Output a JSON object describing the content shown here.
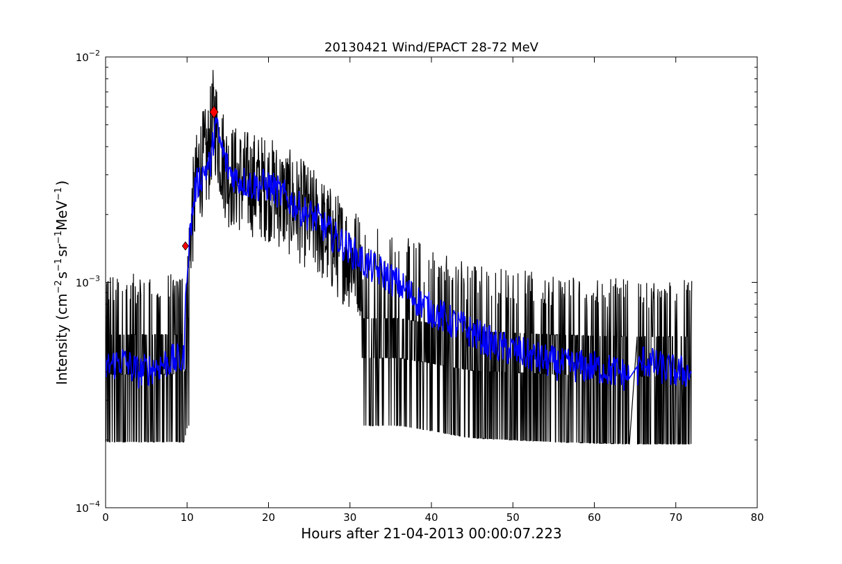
{
  "chart_data": {
    "type": "line",
    "title": "20130421 Wind/EPACT 28-72 MeV",
    "xlabel": "Hours after 21-04-2013 00:00:07.223",
    "ylabel": {
      "prefix": "Intensity (cm",
      "exp1": "−2",
      "mid1": "s",
      "exp2": "−1",
      "mid2": "sr",
      "exp3": "−1",
      "mid3": "MeV",
      "exp4": "−1",
      "suffix": ")"
    },
    "xlim": [
      0,
      80
    ],
    "ylim": [
      0.0001,
      0.01
    ],
    "yscale": "log",
    "x_ticks": [
      0,
      10,
      20,
      30,
      40,
      50,
      60,
      70,
      80
    ],
    "x_tick_labels": [
      "0",
      "10",
      "20",
      "30",
      "40",
      "50",
      "60",
      "70",
      "80"
    ],
    "y_ticks": [
      {
        "value": 0.0001,
        "base": "10",
        "exp": "−4"
      },
      {
        "value": 0.001,
        "base": "10",
        "exp": "−3"
      },
      {
        "value": 0.01,
        "base": "10",
        "exp": "−2"
      }
    ],
    "series": [
      {
        "color": "#000000",
        "style": "raw intensity (noisy)",
        "x": [
          0,
          5,
          9.6,
          10.5,
          11.5,
          12.5,
          13.3,
          14,
          15,
          17,
          20,
          23,
          26,
          28,
          30,
          33,
          36,
          40,
          45,
          50,
          55,
          60,
          64.3,
          65.3,
          68,
          72
        ],
        "y": [
          0.00045,
          0.00045,
          0.00045,
          0.0018,
          0.0033,
          0.0035,
          0.0055,
          0.004,
          0.003,
          0.0028,
          0.0026,
          0.0022,
          0.0018,
          0.0015,
          0.0013,
          0.0011,
          0.0009,
          0.00075,
          0.00055,
          0.0005,
          0.00045,
          0.00042,
          0.0004,
          0.0004,
          0.0004,
          0.0004
        ]
      },
      {
        "color": "#0000ff",
        "style": "smoothed intensity",
        "x": [
          0,
          2,
          4,
          6,
          8,
          9.6,
          10,
          10.5,
          11,
          12,
          13,
          13.4,
          14,
          15,
          16,
          18,
          20,
          22,
          24,
          26,
          28,
          30,
          32,
          34,
          36,
          38,
          40,
          42,
          45,
          48,
          50,
          53,
          56,
          60,
          63,
          64.3,
          65.3,
          66,
          68,
          70,
          72
        ],
        "y": [
          0.00042,
          0.00045,
          0.0004,
          0.00042,
          0.00045,
          0.00045,
          0.0012,
          0.0018,
          0.0026,
          0.0031,
          0.0034,
          0.0052,
          0.0042,
          0.0032,
          0.0029,
          0.0027,
          0.0027,
          0.0024,
          0.0021,
          0.0019,
          0.0016,
          0.0014,
          0.0012,
          0.0011,
          0.00098,
          0.00085,
          0.00075,
          0.00068,
          0.0006,
          0.00052,
          0.0005,
          0.00046,
          0.00043,
          0.00042,
          0.0004,
          0.00038,
          0.0004,
          0.00045,
          0.00042,
          0.0004,
          0.0004
        ]
      }
    ],
    "markers": [
      {
        "x": 9.8,
        "y": 0.00145,
        "color": "#ff0000",
        "size": "small"
      },
      {
        "x": 13.3,
        "y": 0.0057,
        "color": "#ff0000",
        "size": "large"
      }
    ],
    "grid": false,
    "legend": "none"
  }
}
